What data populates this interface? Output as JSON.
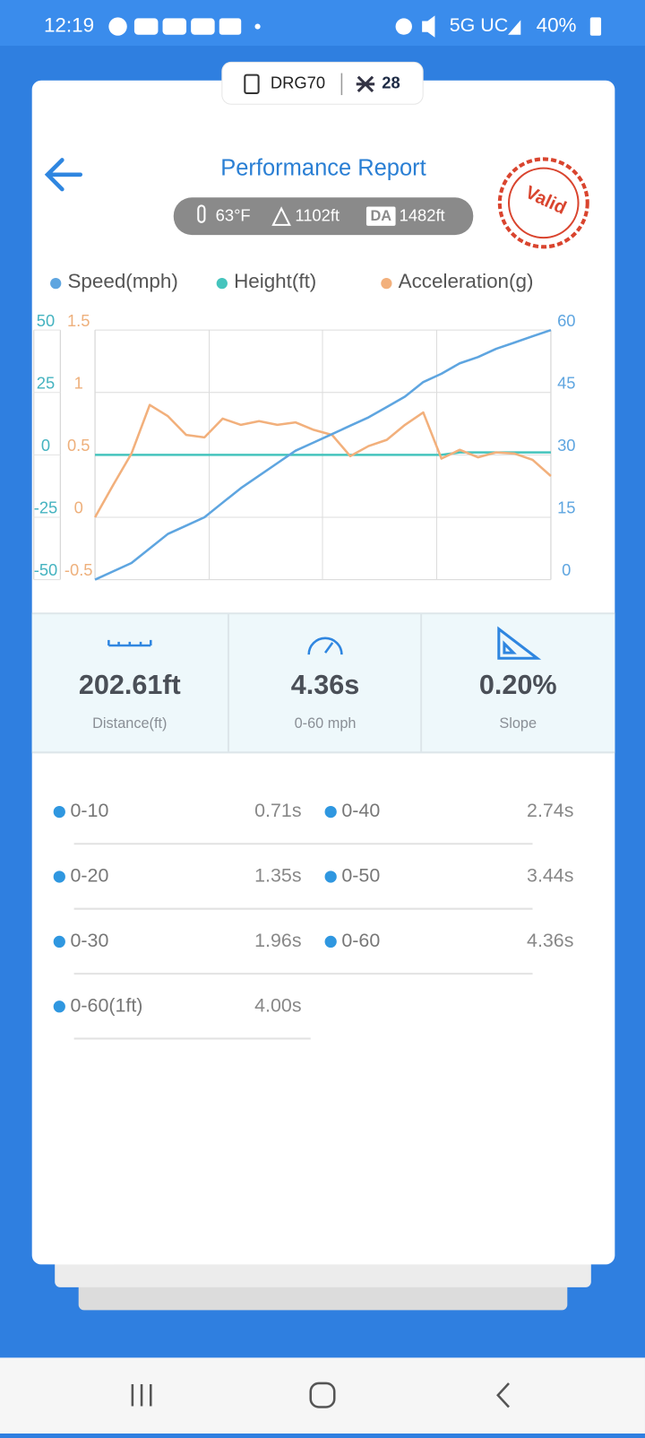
{
  "status_bar": {
    "time": "12:19",
    "network": "5G UC",
    "battery": "40%"
  },
  "device": {
    "name": "DRG70",
    "count": 28
  },
  "header": {
    "title": "Performance Report",
    "temperature": "63°F",
    "altitude": "1102ft",
    "da_badge": "DA",
    "density_altitude": "1482ft",
    "stamp": "Valid"
  },
  "chart_data": {
    "type": "line",
    "legend": "top",
    "grid": true,
    "series": [
      {
        "name": "Speed(mph)",
        "color": "#5ea5e0",
        "axis": "y2",
        "values": [
          0,
          2,
          4,
          7.5,
          11,
          13,
          15,
          18.5,
          22,
          25,
          28,
          31,
          33,
          35,
          37,
          39,
          41.5,
          44,
          47.5,
          49.5,
          52,
          53.5,
          55.5,
          57,
          58.5,
          60
        ]
      },
      {
        "name": "Height(ft)",
        "color": "#45c4bd",
        "axis": "y",
        "values": [
          0,
          0,
          0,
          0,
          0,
          0,
          0,
          0,
          0,
          0,
          0,
          0,
          0,
          0,
          0,
          0,
          0,
          0,
          0,
          0,
          1,
          1,
          1,
          1,
          1,
          1
        ]
      },
      {
        "name": "Acceleration(g)",
        "color": "#f2b07c",
        "axis": "y3",
        "values": [
          0,
          0.26,
          0.51,
          0.9,
          0.81,
          0.66,
          0.64,
          0.79,
          0.74,
          0.77,
          0.74,
          0.76,
          0.7,
          0.66,
          0.49,
          0.57,
          0.62,
          0.74,
          0.84,
          0.47,
          0.54,
          0.48,
          0.52,
          0.51,
          0.46,
          0.33
        ]
      }
    ],
    "ylim": [
      -50,
      50
    ],
    "yticks": [
      -50,
      -25,
      0,
      25,
      50
    ],
    "y3lim": [
      -0.5,
      1.5
    ],
    "y3ticks": [
      -0.5,
      0,
      0.5,
      1,
      1.5
    ],
    "y2lim": [
      0,
      60
    ],
    "y2ticks": [
      0,
      15,
      30,
      45,
      60
    ]
  },
  "stats": [
    {
      "value": "202.61ft",
      "label": "Distance(ft)"
    },
    {
      "value": "4.36s",
      "label": "0-60 mph"
    },
    {
      "value": "0.20%",
      "label": "Slope"
    }
  ],
  "splits": [
    {
      "label": "0-10",
      "time": "0.71s"
    },
    {
      "label": "0-40",
      "time": "2.74s"
    },
    {
      "label": "0-20",
      "time": "1.35s"
    },
    {
      "label": "0-50",
      "time": "3.44s"
    },
    {
      "label": "0-30",
      "time": "1.96s"
    },
    {
      "label": "0-60",
      "time": "4.36s"
    },
    {
      "label": "0-60(1ft)",
      "time": "4.00s"
    }
  ]
}
